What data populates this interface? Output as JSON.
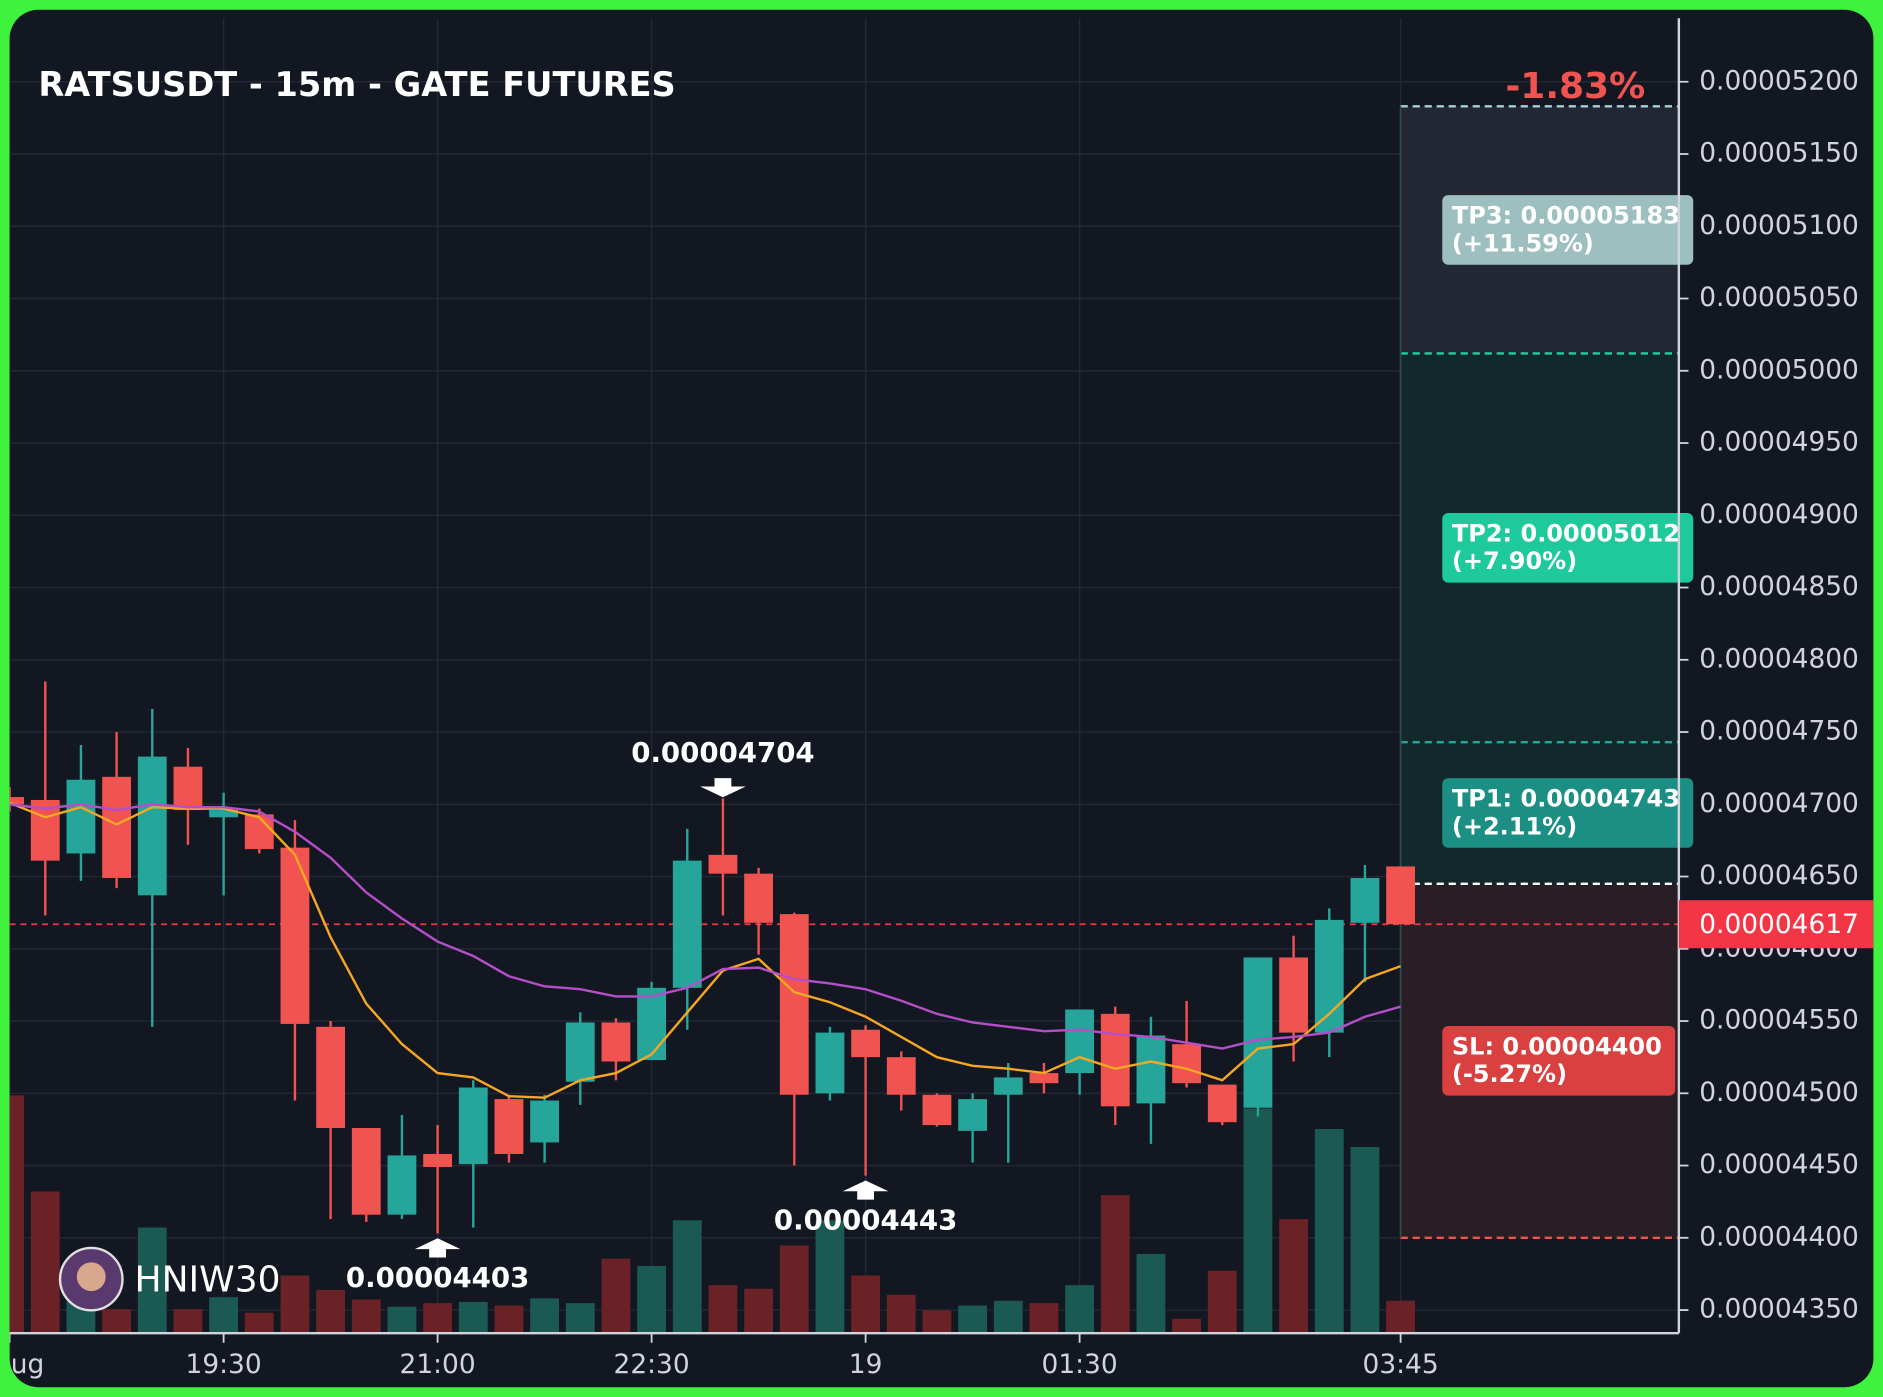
{
  "chart_data": {
    "type": "candlestick",
    "title": "RATSUSDT - 15m - GATE FUTURES",
    "pnl_label": "-1.83%",
    "watermark": "HNIW30",
    "categories": [
      "ug",
      null,
      null,
      null,
      null,
      null,
      "19:30",
      null,
      null,
      null,
      null,
      null,
      "21:00",
      null,
      null,
      null,
      null,
      null,
      "22:30",
      null,
      null,
      null,
      null,
      null,
      "19",
      null,
      null,
      null,
      null,
      null,
      "01:30",
      null,
      null,
      null,
      null,
      null,
      null,
      null,
      null,
      "03:45"
    ],
    "open": [
      4.705e-05,
      4.703e-05,
      4.666e-05,
      4.719e-05,
      4.637e-05,
      4.726e-05,
      4.691e-05,
      4.693e-05,
      4.67e-05,
      4.546e-05,
      4.476e-05,
      4.416e-05,
      4.458e-05,
      4.451e-05,
      4.496e-05,
      4.466e-05,
      4.508e-05,
      4.549e-05,
      4.523e-05,
      4.573e-05,
      4.665e-05,
      4.652e-05,
      4.624e-05,
      4.5e-05,
      4.544e-05,
      4.525e-05,
      4.499e-05,
      4.474e-05,
      4.499e-05,
      4.514e-05,
      4.514e-05,
      4.555e-05,
      4.493e-05,
      4.534e-05,
      4.506e-05,
      4.49e-05,
      4.594e-05,
      4.542e-05,
      4.618e-05,
      4.657e-05
    ],
    "high": [
      4.712e-05,
      4.785e-05,
      4.741e-05,
      4.75e-05,
      4.766e-05,
      4.739e-05,
      4.708e-05,
      4.697e-05,
      4.689e-05,
      4.55e-05,
      4.476e-05,
      4.485e-05,
      4.478e-05,
      4.509e-05,
      4.499e-05,
      4.499e-05,
      4.556e-05,
      4.552e-05,
      4.577e-05,
      4.683e-05,
      4.704e-05,
      4.656e-05,
      4.625e-05,
      4.546e-05,
      4.547e-05,
      4.529e-05,
      4.5e-05,
      4.5e-05,
      4.521e-05,
      4.521e-05,
      4.558e-05,
      4.56e-05,
      4.553e-05,
      4.564e-05,
      4.506e-05,
      4.594e-05,
      4.609e-05,
      4.628e-05,
      4.658e-05,
      4.657e-05
    ],
    "low": [
      4.695e-05,
      4.623e-05,
      4.647e-05,
      4.642e-05,
      4.546e-05,
      4.672e-05,
      4.637e-05,
      4.666e-05,
      4.495e-05,
      4.413e-05,
      4.411e-05,
      4.413e-05,
      4.403e-05,
      4.407e-05,
      4.452e-05,
      4.452e-05,
      4.492e-05,
      4.509e-05,
      4.523e-05,
      4.544e-05,
      4.623e-05,
      4.596e-05,
      4.45e-05,
      4.495e-05,
      4.443e-05,
      4.488e-05,
      4.477e-05,
      4.452e-05,
      4.452e-05,
      4.5e-05,
      4.499e-05,
      4.478e-05,
      4.465e-05,
      4.504e-05,
      4.478e-05,
      4.484e-05,
      4.522e-05,
      4.525e-05,
      4.577e-05,
      4.617e-05
    ],
    "close": [
      4.7e-05,
      4.661e-05,
      4.717e-05,
      4.649e-05,
      4.733e-05,
      4.696e-05,
      4.696e-05,
      4.669e-05,
      4.548e-05,
      4.476e-05,
      4.416e-05,
      4.457e-05,
      4.449e-05,
      4.504e-05,
      4.458e-05,
      4.495e-05,
      4.549e-05,
      4.522e-05,
      4.573e-05,
      4.661e-05,
      4.652e-05,
      4.618e-05,
      4.499e-05,
      4.542e-05,
      4.525e-05,
      4.499e-05,
      4.478e-05,
      4.496e-05,
      4.511e-05,
      4.507e-05,
      4.558e-05,
      4.491e-05,
      4.54e-05,
      4.507e-05,
      4.48e-05,
      4.594e-05,
      4.542e-05,
      4.62e-05,
      4.649e-05,
      4.617e-05
    ],
    "volume": [
      198,
      118,
      28,
      20,
      88,
      20,
      30,
      17,
      48,
      36,
      28,
      22,
      25,
      26,
      23,
      29,
      25,
      62,
      56,
      94,
      40,
      37,
      73,
      94,
      48,
      32,
      19,
      23,
      27,
      25,
      40,
      115,
      66,
      12,
      52,
      187,
      95,
      170,
      155,
      27
    ],
    "volume_lim": [
      0,
      250
    ],
    "up_color": "#26a69a",
    "down_color": "#f05350",
    "volume_up_color": "#1b5a52",
    "volume_down_color": "#6b2226",
    "ma": [
      {
        "color": "#f5a623",
        "values": [
          4.701e-05,
          4.691e-05,
          4.698e-05,
          4.686e-05,
          4.698e-05,
          4.697e-05,
          4.697e-05,
          4.691e-05,
          4.665e-05,
          4.608e-05,
          4.562e-05,
          4.534e-05,
          4.514e-05,
          4.511e-05,
          4.498e-05,
          4.497e-05,
          4.509e-05,
          4.514e-05,
          4.527e-05,
          4.556e-05,
          4.585e-05,
          4.593e-05,
          4.57e-05,
          4.563e-05,
          4.553e-05,
          4.539e-05,
          4.525e-05,
          4.519e-05,
          4.517e-05,
          4.514e-05,
          4.525e-05,
          4.517e-05,
          4.522e-05,
          4.517e-05,
          4.509e-05,
          4.531e-05,
          4.534e-05,
          4.555e-05,
          4.579e-05,
          4.588e-05
        ]
      },
      {
        "color": "#b44fc9",
        "values": [
          4.7e-05,
          4.697e-05,
          4.7e-05,
          4.696e-05,
          4.7e-05,
          4.698e-05,
          4.698e-05,
          4.695e-05,
          4.681e-05,
          4.663e-05,
          4.639e-05,
          4.621e-05,
          4.605e-05,
          4.595e-05,
          4.581e-05,
          4.574e-05,
          4.572e-05,
          4.567e-05,
          4.567e-05,
          4.573e-05,
          4.586e-05,
          4.587e-05,
          4.579e-05,
          4.576e-05,
          4.572e-05,
          4.564e-05,
          4.555e-05,
          4.549e-05,
          4.546e-05,
          4.543e-05,
          4.544e-05,
          4.541e-05,
          4.539e-05,
          4.535e-05,
          4.531e-05,
          4.537e-05,
          4.539e-05,
          4.542e-05,
          4.553e-05,
          4.56e-05
        ]
      }
    ],
    "ylim": [
      4.334e-05,
      5.244e-05
    ],
    "yticks": [
      {
        "value": 4.35e-05,
        "label": "0.00004350"
      },
      {
        "value": 4.4e-05,
        "label": "0.00004400"
      },
      {
        "value": 4.45e-05,
        "label": "0.00004450"
      },
      {
        "value": 4.5e-05,
        "label": "0.00004500"
      },
      {
        "value": 4.55e-05,
        "label": "0.00004550"
      },
      {
        "value": 4.6e-05,
        "label": "0.00004600"
      },
      {
        "value": 4.65e-05,
        "label": "0.00004650"
      },
      {
        "value": 4.7e-05,
        "label": "0.00004700"
      },
      {
        "value": 4.75e-05,
        "label": "0.00004750"
      },
      {
        "value": 4.8e-05,
        "label": "0.00004800"
      },
      {
        "value": 4.85e-05,
        "label": "0.00004850"
      },
      {
        "value": 4.9e-05,
        "label": "0.00004900"
      },
      {
        "value": 4.95e-05,
        "label": "0.00004950"
      },
      {
        "value": 5e-05,
        "label": "0.00005000"
      },
      {
        "value": 5.05e-05,
        "label": "0.00005050"
      },
      {
        "value": 5.1e-05,
        "label": "0.00005100"
      },
      {
        "value": 5.15e-05,
        "label": "0.00005150"
      },
      {
        "value": 5.2e-05,
        "label": "0.00005200"
      }
    ],
    "grid": true,
    "entry": 4.645e-05,
    "levels": [
      {
        "label": "TP3: 0.00005183",
        "sublabel": "(+11.59%)",
        "value": 5.183e-05,
        "color": "#a9d0d0",
        "box_color": "#9dbfc0",
        "zone_color": "#222833"
      },
      {
        "label": "TP2: 0.00005012",
        "sublabel": "(+7.90%)",
        "value": 5.012e-05,
        "color": "#1fd1a3",
        "box_color": "#1ec99b",
        "zone_color": "#12282a"
      },
      {
        "label": "TP1: 0.00004743",
        "sublabel": "(+2.11%)",
        "value": 4.743e-05,
        "color": "#26a69a",
        "box_color": "#1c8f84",
        "zone_color": "#12282a"
      },
      {
        "label": "SL: 0.00004400",
        "sublabel": "(-5.27%)",
        "value": 4.4e-05,
        "color": "#f05350",
        "box_color": "#d9403f",
        "zone_color": "#2a1e26"
      }
    ],
    "current_price": {
      "value": 4.617e-05,
      "label": "0.00004617"
    },
    "annotations": [
      {
        "value": 4.704e-05,
        "label": "0.00004704"
      },
      {
        "value": 4.403e-05,
        "label": "0.00004403"
      },
      {
        "value": 4.443e-05,
        "label": "0.00004443"
      }
    ]
  }
}
